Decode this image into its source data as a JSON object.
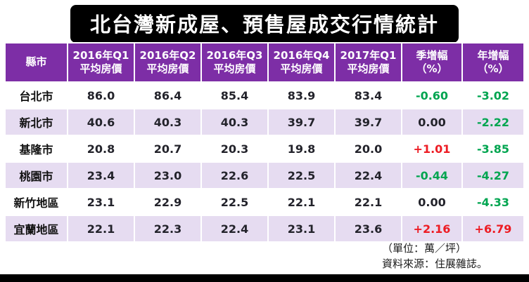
{
  "title": "北台灣新成屋、預售屋成交行情統計",
  "palette": {
    "header_purple": "#7D2EA6",
    "stripe_lavender": "#E6DCF1",
    "positive": "#ED1C24",
    "negative": "#00A550",
    "neutral": "#23232B",
    "title_bg": "#000000",
    "title_text": "#ffffff"
  },
  "footer": {
    "unit": "（單位：萬／坪）",
    "source": "資料來源：住展雜誌。"
  },
  "chart_data": {
    "type": "table",
    "title": "北台灣新成屋、預售屋成交行情統計",
    "unit": "萬／坪",
    "columns": [
      {
        "id": "city",
        "line1": "縣市",
        "line2": ""
      },
      {
        "id": "q1_2016",
        "line1": "2016年Q1",
        "line2": "平均房價"
      },
      {
        "id": "q2_2016",
        "line1": "2016年Q2",
        "line2": "平均房價"
      },
      {
        "id": "q3_2016",
        "line1": "2016年Q3",
        "line2": "平均房價"
      },
      {
        "id": "q4_2016",
        "line1": "2016年Q4",
        "line2": "平均房價"
      },
      {
        "id": "q1_2017",
        "line1": "2017年Q1",
        "line2": "平均房價"
      },
      {
        "id": "qoq",
        "line1": "季增幅",
        "line2": "（%）"
      },
      {
        "id": "yoy",
        "line1": "年增幅",
        "line2": "（%）"
      }
    ],
    "rows": [
      {
        "city": "台北市",
        "prices": [
          "86.0",
          "86.4",
          "85.4",
          "83.9",
          "83.4"
        ],
        "qoq": "-0.60",
        "yoy": "-3.02"
      },
      {
        "city": "新北市",
        "prices": [
          "40.6",
          "40.3",
          "40.3",
          "39.7",
          "39.7"
        ],
        "qoq": "0.00",
        "yoy": "-2.22"
      },
      {
        "city": "基隆市",
        "prices": [
          "20.8",
          "20.7",
          "20.3",
          "19.8",
          "20.0"
        ],
        "qoq": "+1.01",
        "yoy": "-3.85"
      },
      {
        "city": "桃園市",
        "prices": [
          "23.4",
          "23.0",
          "22.6",
          "22.5",
          "22.4"
        ],
        "qoq": "-0.44",
        "yoy": "-4.27"
      },
      {
        "city": "新竹地區",
        "prices": [
          "23.1",
          "22.9",
          "22.5",
          "22.1",
          "22.1"
        ],
        "qoq": "0.00",
        "yoy": "-4.33"
      },
      {
        "city": "宜蘭地區",
        "prices": [
          "22.1",
          "22.3",
          "22.4",
          "23.1",
          "23.6"
        ],
        "qoq": "+2.16",
        "yoy": "+6.79"
      }
    ]
  }
}
